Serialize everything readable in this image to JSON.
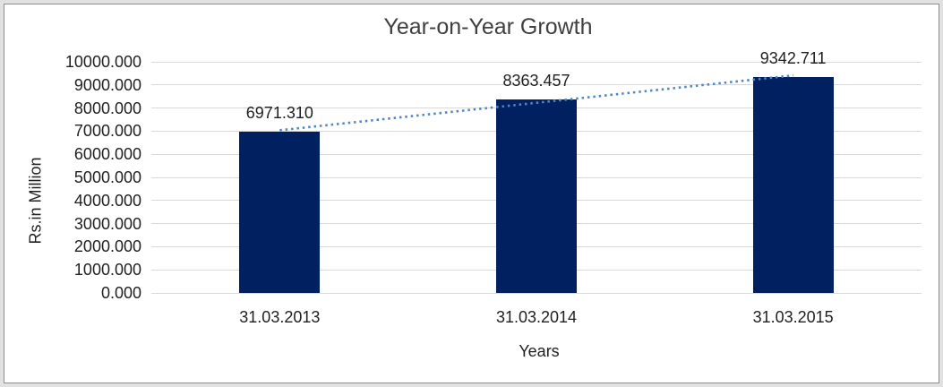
{
  "chart_data": {
    "type": "bar",
    "title": "Year-on-Year Growth",
    "xlabel": "Years",
    "ylabel": "Rs.in Million",
    "categories": [
      "31.03.2013",
      "31.03.2014",
      "31.03.2015"
    ],
    "values": [
      6971.31,
      8363.457,
      9342.711
    ],
    "data_labels": [
      "6971.310",
      "8363.457",
      "9342.711"
    ],
    "ylim": [
      0,
      10000
    ],
    "ytick_step": 1000,
    "ytick_labels": [
      "0.000",
      "1000.000",
      "2000.000",
      "3000.000",
      "4000.000",
      "5000.000",
      "6000.000",
      "7000.000",
      "8000.000",
      "9000.000",
      "10000.000"
    ],
    "grid": "horizontal",
    "legend": "none",
    "trendline": {
      "type": "linear",
      "style": "dotted"
    },
    "colors": {
      "bar": "#002060",
      "trendline": "#4E87C6",
      "gridline": "#D9D9D9",
      "text": "#1F1F1F",
      "title_text": "#3F3F3F",
      "frame_border": "#8C8C8C",
      "outer_background": "#E1E1E1",
      "plot_background": "#FFFFFF"
    }
  }
}
